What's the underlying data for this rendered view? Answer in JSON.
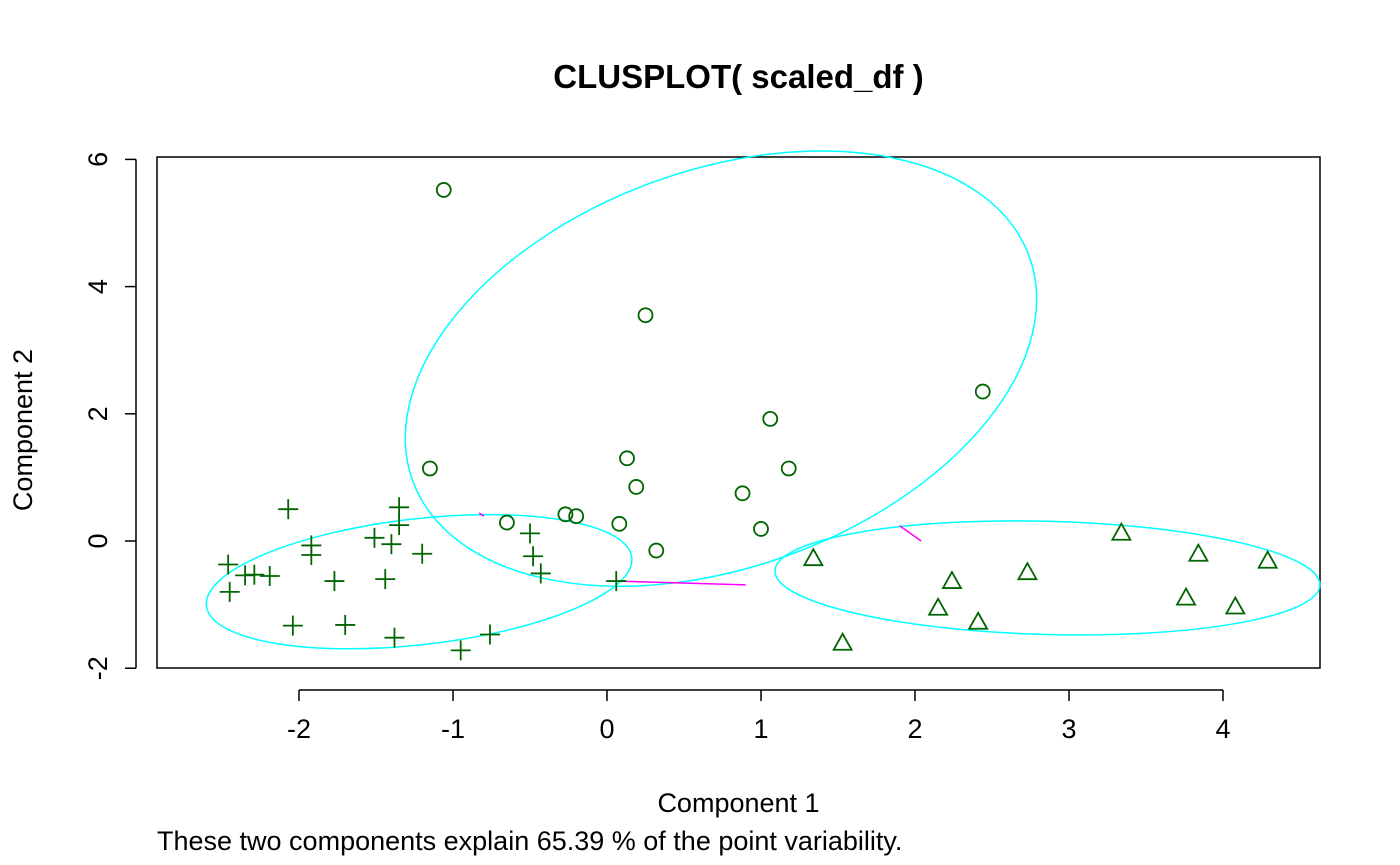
{
  "chart_data": {
    "type": "scatter",
    "title": "CLUSPLOT( scaled_df )",
    "xlabel": "Component 1",
    "ylabel": "Component 2",
    "subtitle": "These two components explain 65.39 % of the point variability.",
    "xlim": [
      -2.95,
      4.6
    ],
    "ylim": [
      -2.0,
      6.0
    ],
    "x_ticks": [
      -2,
      -1,
      0,
      1,
      2,
      3,
      4
    ],
    "y_ticks": [
      -2,
      0,
      2,
      4,
      6
    ],
    "grid": false,
    "legend": "none",
    "colors": {
      "points": "#006400",
      "ellipses": "#00ffff",
      "lines": "#ff00ff",
      "axes": "#000000"
    },
    "series": [
      {
        "marker": "plus",
        "points": [
          [
            -2.07,
            0.5
          ],
          [
            -1.92,
            -0.07
          ],
          [
            -1.92,
            -0.22
          ],
          [
            -1.35,
            0.53
          ],
          [
            -1.35,
            0.25
          ],
          [
            -1.51,
            0.05
          ],
          [
            -1.4,
            -0.05
          ],
          [
            -1.2,
            -0.2
          ],
          [
            -0.5,
            0.12
          ],
          [
            -0.48,
            -0.24
          ],
          [
            -0.43,
            -0.51
          ],
          [
            -2.46,
            -0.37
          ],
          [
            -2.45,
            -0.8
          ],
          [
            -2.35,
            -0.54
          ],
          [
            -2.29,
            -0.53
          ],
          [
            -2.19,
            -0.55
          ],
          [
            -1.77,
            -0.63
          ],
          [
            -1.44,
            -0.6
          ],
          [
            -2.04,
            -1.33
          ],
          [
            -1.7,
            -1.32
          ],
          [
            -1.38,
            -1.52
          ],
          [
            -0.95,
            -1.72
          ],
          [
            -0.76,
            -1.47
          ],
          [
            0.06,
            -0.63
          ]
        ]
      },
      {
        "marker": "circle",
        "points": [
          [
            -1.06,
            5.52
          ],
          [
            0.25,
            3.55
          ],
          [
            2.44,
            2.35
          ],
          [
            1.06,
            1.92
          ],
          [
            -1.15,
            1.14
          ],
          [
            0.13,
            1.3
          ],
          [
            1.18,
            1.14
          ],
          [
            0.19,
            0.85
          ],
          [
            0.88,
            0.75
          ],
          [
            -0.65,
            0.29
          ],
          [
            -0.27,
            0.42
          ],
          [
            -0.2,
            0.39
          ],
          [
            0.08,
            0.27
          ],
          [
            1.0,
            0.19
          ],
          [
            0.32,
            -0.15
          ]
        ]
      },
      {
        "marker": "triangle",
        "points": [
          [
            1.34,
            -0.27
          ],
          [
            1.53,
            -1.6
          ],
          [
            2.15,
            -1.05
          ],
          [
            2.24,
            -0.63
          ],
          [
            2.41,
            -1.27
          ],
          [
            2.73,
            -0.49
          ],
          [
            3.34,
            0.13
          ],
          [
            3.76,
            -0.89
          ],
          [
            3.84,
            -0.2
          ],
          [
            4.08,
            -1.03
          ],
          [
            4.29,
            -0.31
          ]
        ]
      }
    ],
    "ellipses": [
      {
        "cx": -1.22,
        "cy": -0.64,
        "rx": 1.39,
        "ry": 0.99,
        "angle_deg": -6.5
      },
      {
        "cx": 0.74,
        "cy": 2.71,
        "rx": 2.13,
        "ry": 3.12,
        "angle_deg": -20
      },
      {
        "cx": 2.86,
        "cy": -0.58,
        "rx": 1.77,
        "ry": 0.89,
        "angle_deg": 1.5
      }
    ],
    "connectors": [
      {
        "from": [
          -0.83,
          0.44
        ],
        "to": [
          -0.8,
          0.39
        ]
      },
      {
        "from": [
          0.06,
          -0.63
        ],
        "to": [
          0.9,
          -0.69
        ]
      },
      {
        "from": [
          1.9,
          0.24
        ],
        "to": [
          2.04,
          0.0
        ]
      }
    ]
  }
}
